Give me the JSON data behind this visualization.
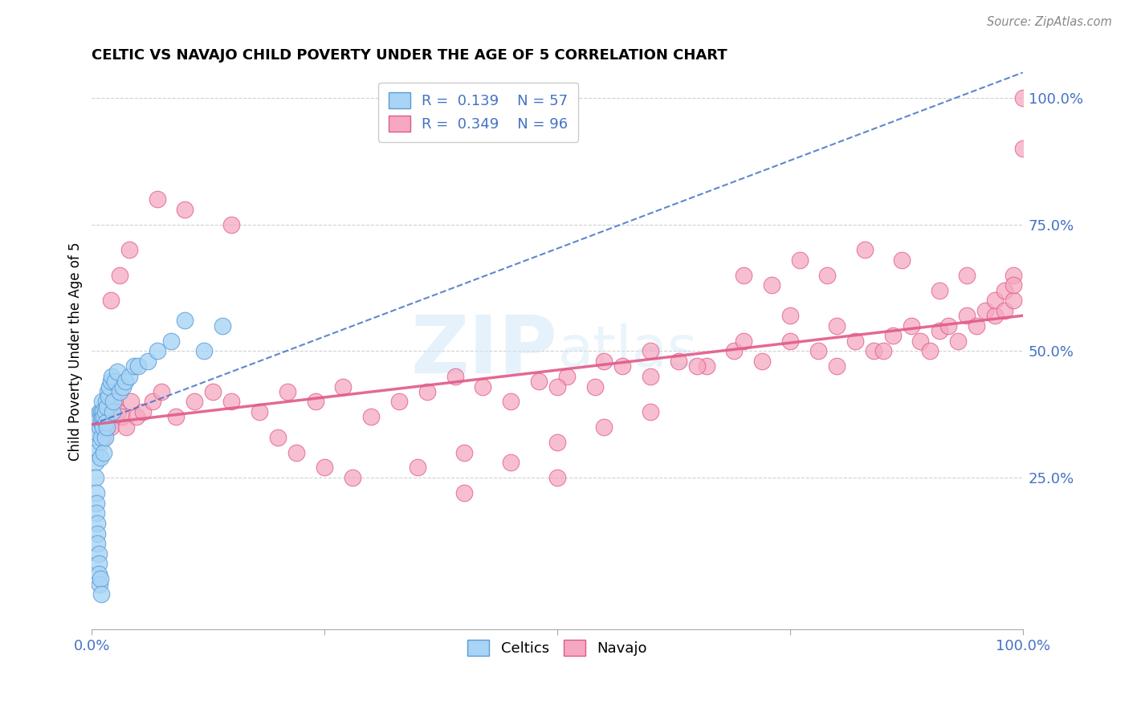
{
  "title": "CELTIC VS NAVAJO CHILD POVERTY UNDER THE AGE OF 5 CORRELATION CHART",
  "source": "Source: ZipAtlas.com",
  "ylabel": "Child Poverty Under the Age of 5",
  "xlim": [
    0,
    1
  ],
  "ylim": [
    -0.05,
    1.05
  ],
  "celtics_R": 0.139,
  "celtics_N": 57,
  "navajo_R": 0.349,
  "navajo_N": 96,
  "celtics_color": "#A8D4F5",
  "navajo_color": "#F5A8C0",
  "celtics_edge": "#5B9BD5",
  "navajo_edge": "#E05A8A",
  "trend_celtics_color": "#4472C4",
  "trend_navajo_color": "#E05A8A",
  "background_color": "#ffffff",
  "grid_color": "#cccccc",
  "tick_label_color": "#4472C4",
  "celtics_x": [
    0.002,
    0.003,
    0.003,
    0.004,
    0.004,
    0.005,
    0.005,
    0.005,
    0.006,
    0.006,
    0.006,
    0.007,
    0.007,
    0.007,
    0.008,
    0.008,
    0.008,
    0.009,
    0.009,
    0.009,
    0.01,
    0.01,
    0.01,
    0.01,
    0.011,
    0.011,
    0.012,
    0.012,
    0.013,
    0.013,
    0.014,
    0.014,
    0.015,
    0.015,
    0.016,
    0.016,
    0.017,
    0.018,
    0.019,
    0.02,
    0.021,
    0.022,
    0.023,
    0.025,
    0.027,
    0.03,
    0.033,
    0.036,
    0.04,
    0.045,
    0.05,
    0.06,
    0.07,
    0.085,
    0.1,
    0.12,
    0.14
  ],
  "celtics_y": [
    0.37,
    0.34,
    0.3,
    0.28,
    0.25,
    0.22,
    0.2,
    0.18,
    0.16,
    0.14,
    0.12,
    0.1,
    0.08,
    0.06,
    0.04,
    0.38,
    0.35,
    0.32,
    0.29,
    0.05,
    0.38,
    0.36,
    0.33,
    0.02,
    0.37,
    0.4,
    0.38,
    0.35,
    0.37,
    0.3,
    0.38,
    0.33,
    0.4,
    0.36,
    0.39,
    0.35,
    0.42,
    0.41,
    0.43,
    0.44,
    0.45,
    0.38,
    0.4,
    0.44,
    0.46,
    0.42,
    0.43,
    0.44,
    0.45,
    0.47,
    0.47,
    0.48,
    0.5,
    0.52,
    0.56,
    0.5,
    0.55
  ],
  "navajo_x": [
    0.008,
    0.01,
    0.013,
    0.016,
    0.018,
    0.02,
    0.025,
    0.028,
    0.032,
    0.037,
    0.042,
    0.048,
    0.055,
    0.065,
    0.075,
    0.09,
    0.11,
    0.13,
    0.15,
    0.18,
    0.21,
    0.24,
    0.27,
    0.3,
    0.33,
    0.36,
    0.39,
    0.42,
    0.45,
    0.48,
    0.51,
    0.54,
    0.57,
    0.6,
    0.63,
    0.66,
    0.69,
    0.72,
    0.75,
    0.78,
    0.8,
    0.82,
    0.84,
    0.86,
    0.88,
    0.89,
    0.9,
    0.91,
    0.92,
    0.93,
    0.94,
    0.95,
    0.96,
    0.97,
    0.97,
    0.98,
    0.98,
    0.99,
    0.99,
    0.99,
    1.0,
    1.0,
    0.35,
    0.4,
    0.45,
    0.5,
    0.55,
    0.6,
    0.2,
    0.22,
    0.25,
    0.28,
    0.7,
    0.73,
    0.76,
    0.79,
    0.83,
    0.87,
    0.91,
    0.94,
    0.5,
    0.55,
    0.6,
    0.65,
    0.7,
    0.15,
    0.1,
    0.07,
    0.04,
    0.03,
    0.02,
    0.75,
    0.8,
    0.85,
    0.4,
    0.5
  ],
  "navajo_y": [
    0.37,
    0.35,
    0.33,
    0.35,
    0.38,
    0.35,
    0.4,
    0.38,
    0.37,
    0.35,
    0.4,
    0.37,
    0.38,
    0.4,
    0.42,
    0.37,
    0.4,
    0.42,
    0.4,
    0.38,
    0.42,
    0.4,
    0.43,
    0.37,
    0.4,
    0.42,
    0.45,
    0.43,
    0.4,
    0.44,
    0.45,
    0.43,
    0.47,
    0.45,
    0.48,
    0.47,
    0.5,
    0.48,
    0.52,
    0.5,
    0.47,
    0.52,
    0.5,
    0.53,
    0.55,
    0.52,
    0.5,
    0.54,
    0.55,
    0.52,
    0.57,
    0.55,
    0.58,
    0.57,
    0.6,
    0.58,
    0.62,
    0.6,
    0.65,
    0.63,
    1.0,
    0.9,
    0.27,
    0.3,
    0.28,
    0.32,
    0.35,
    0.38,
    0.33,
    0.3,
    0.27,
    0.25,
    0.65,
    0.63,
    0.68,
    0.65,
    0.7,
    0.68,
    0.62,
    0.65,
    0.43,
    0.48,
    0.5,
    0.47,
    0.52,
    0.75,
    0.78,
    0.8,
    0.7,
    0.65,
    0.6,
    0.57,
    0.55,
    0.5,
    0.22,
    0.25
  ],
  "celtics_trend_x": [
    0,
    1.0
  ],
  "celtics_trend_y": [
    0.355,
    1.05
  ],
  "navajo_trend_x": [
    0,
    1.0
  ],
  "navajo_trend_y": [
    0.355,
    0.57
  ]
}
